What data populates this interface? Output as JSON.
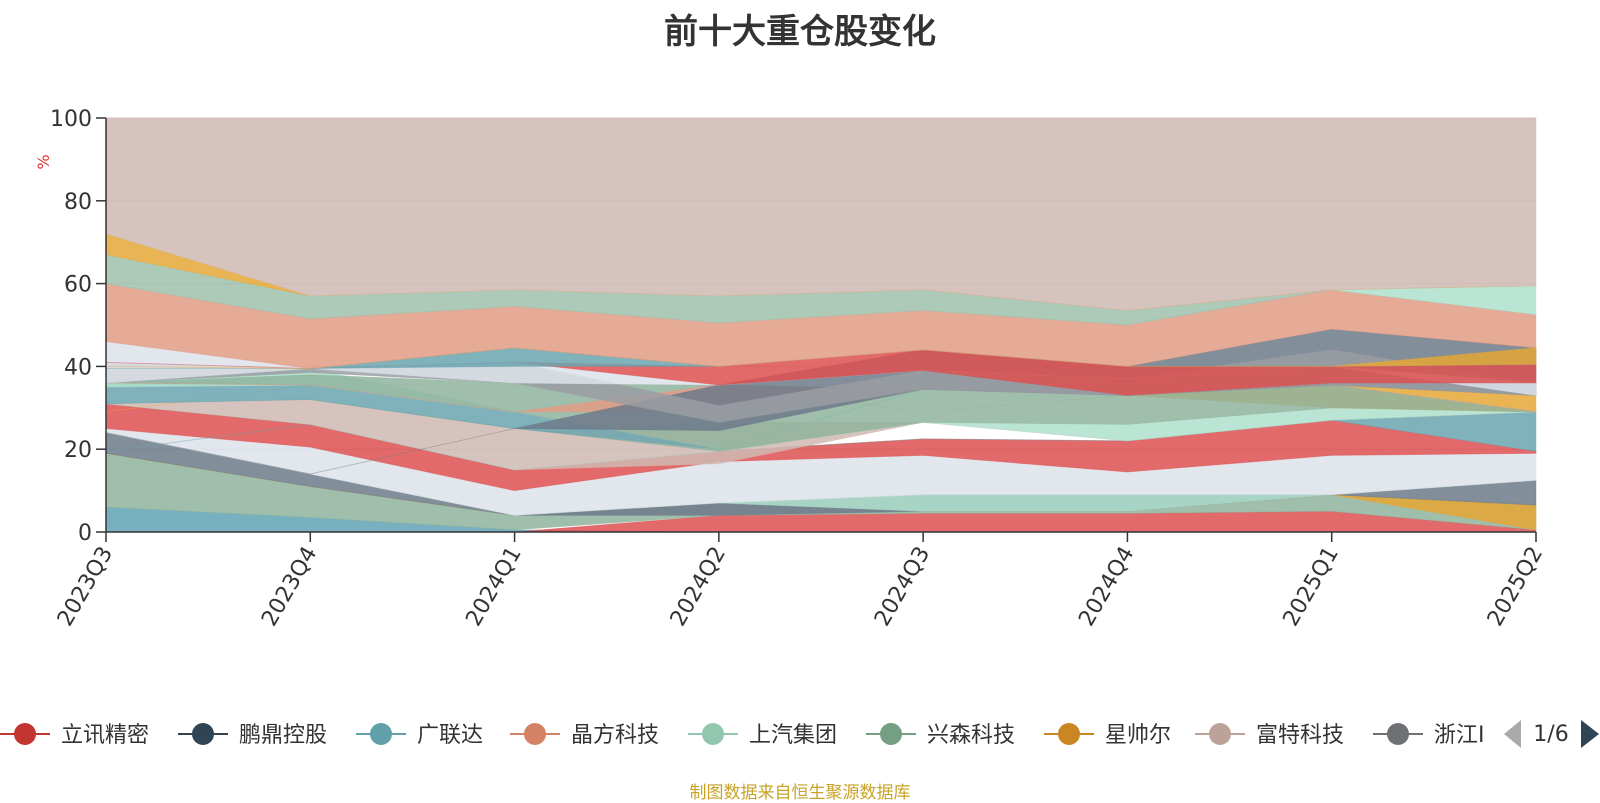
{
  "source_note": "制图数据来自恒生聚源数据库",
  "legend_page": "1/6",
  "chart_data": {
    "type": "area",
    "title": "前十大重仓股变化",
    "ylabel": "%",
    "ylim": [
      0,
      100
    ],
    "yticks": [
      0,
      20,
      40,
      60,
      80,
      100
    ],
    "grid": true,
    "legend_position": "bottom",
    "categories": [
      "2023Q3",
      "2023Q4",
      "2024Q1",
      "2024Q2",
      "2024Q3",
      "2024Q4",
      "2025Q1",
      "2025Q2"
    ],
    "bands": [
      {
        "color": "#5fa3b5",
        "lower": [
          0,
          0,
          0,
          0,
          0,
          0,
          0,
          0
        ],
        "upper": [
          6,
          3.5,
          0.5,
          0,
          0,
          0,
          0,
          0
        ]
      },
      {
        "color": "#dd5050",
        "lower": [
          0,
          0,
          0,
          0,
          0,
          0,
          0,
          0
        ],
        "upper": [
          0,
          0,
          0,
          4,
          4.5,
          4.5,
          5,
          0.5
        ]
      },
      {
        "color": "#8fb39d",
        "lower": [
          6,
          3.5,
          0.5,
          4,
          4.5,
          4.5,
          5,
          0.5
        ],
        "upper": [
          19,
          11,
          4,
          7,
          5,
          5,
          9,
          6.5
        ]
      },
      {
        "color": "#e5a735",
        "lower": [
          19,
          11,
          4,
          7,
          5,
          5,
          9,
          0.5
        ],
        "upper": [
          19,
          11,
          4,
          7,
          5,
          5,
          9,
          6.5
        ]
      },
      {
        "color": "#6d7a8a",
        "lower": [
          19,
          11,
          4,
          4,
          5,
          5,
          9,
          6.5
        ],
        "upper": [
          24,
          14,
          4,
          7,
          9,
          9,
          9,
          12.5
        ]
      },
      {
        "color": "#aee0cc",
        "lower": [
          24,
          14,
          4,
          7,
          5,
          5,
          9,
          12.5
        ],
        "upper": [
          24,
          14,
          4,
          7,
          9,
          9,
          9,
          12.5
        ]
      },
      {
        "color": "#dde2ea",
        "lower": [
          24,
          14,
          4,
          7,
          9,
          9,
          9,
          12.5
        ],
        "upper": [
          25,
          20.5,
          10,
          17,
          18.5,
          14.5,
          18.5,
          19
        ]
      },
      {
        "color": "#dd5050",
        "lower": [
          25,
          20.5,
          10,
          17,
          18.5,
          14.5,
          18.5,
          19
        ],
        "upper": [
          31,
          26,
          15,
          19.5,
          22.5,
          22,
          27,
          19.5
        ]
      },
      {
        "color": "#6aa5b0",
        "lower": [
          19.5,
          26,
          15,
          19.5,
          22.5,
          22,
          27,
          19.5
        ],
        "upper": [
          19.5,
          26,
          15,
          19.5,
          22.5,
          22,
          27,
          29
        ]
      },
      {
        "color": "#d0b9b2",
        "lower": [
          31,
          26,
          15,
          16.5,
          26.5,
          22,
          27,
          29
        ],
        "upper": [
          31,
          32,
          25,
          26.5,
          26.5,
          22,
          27,
          29
        ]
      },
      {
        "color": "#aee0cc",
        "lower": [
          31,
          26,
          15,
          19.5,
          26.5,
          22,
          27,
          29
        ],
        "upper": [
          31,
          26,
          15,
          19.5,
          26.5,
          26,
          30,
          29
        ]
      },
      {
        "color": "#e5a735",
        "lower": [
          29,
          35.5,
          35.5,
          35.5,
          29,
          33,
          30,
          29
        ],
        "upper": [
          29,
          35.5,
          35.5,
          35.5,
          29,
          33,
          35.5,
          33
        ]
      },
      {
        "color": "#8fb39d",
        "lower": [
          31,
          32,
          25,
          19.5,
          26.5,
          26,
          30,
          29
        ],
        "upper": [
          31,
          32,
          25,
          20,
          34.5,
          33,
          35.5,
          29
        ]
      },
      {
        "color": "#6aa5b0",
        "lower": [
          31,
          32,
          25,
          20,
          34.5,
          33,
          35.5,
          29
        ],
        "upper": [
          37,
          35.5,
          29,
          20,
          34.5,
          33,
          35.5,
          29
        ]
      },
      {
        "color": "#aee0cc",
        "lower": [
          35,
          35.5,
          29,
          20,
          34.5,
          33,
          35.5,
          29
        ],
        "upper": [
          36,
          39.5,
          29,
          20,
          34.5,
          33,
          35.5,
          29
        ]
      },
      {
        "color": "#8fb39d",
        "lower": [
          36,
          35.5,
          29,
          20,
          34.5,
          33,
          35.5,
          29
        ],
        "upper": [
          36,
          38,
          36,
          35.5,
          34.5,
          33,
          35.5,
          29
        ]
      },
      {
        "color": "#e29c85",
        "lower": [
          36,
          35.5,
          29,
          29,
          34.5,
          33,
          35.5,
          29
        ],
        "upper": [
          36,
          35.5,
          29,
          35.5,
          34.5,
          33,
          35.5,
          29
        ]
      },
      {
        "color": "#6d7a8a",
        "lower": [
          24,
          14,
          25,
          24.5,
          34.5,
          33,
          35.5,
          33
        ],
        "upper": [
          24,
          14,
          25,
          35.5,
          44,
          40,
          49,
          44.5
        ]
      },
      {
        "color": "#9a9ea3",
        "lower": [
          36,
          38.5,
          36,
          26.5,
          34.5,
          33,
          35.5,
          33
        ],
        "upper": [
          41,
          39.5,
          41,
          30.5,
          39,
          37,
          44,
          36
        ]
      },
      {
        "color": "#dde2ea",
        "lower": [
          36,
          39.5,
          36,
          35.5,
          39,
          37,
          40,
          33
        ],
        "upper": [
          46,
          39.5,
          41,
          35.5,
          39,
          37,
          40,
          36
        ]
      },
      {
        "color": "#dd5050",
        "lower": [
          41,
          39.5,
          41,
          35.5,
          39,
          33,
          36,
          36
        ],
        "upper": [
          41,
          39.5,
          41,
          40,
          44,
          40,
          40,
          40.5
        ]
      },
      {
        "color": "#6aa5b0",
        "lower": [
          39.5,
          39.5,
          40,
          40,
          44,
          40,
          40,
          40.5
        ],
        "upper": [
          39.5,
          39.5,
          44.5,
          40,
          44,
          40,
          40,
          40.5
        ]
      },
      {
        "color": "#e5a735",
        "lower": [
          40,
          39.5,
          44.5,
          40,
          44,
          40,
          40,
          40.5
        ],
        "upper": [
          40,
          39.5,
          44.5,
          40,
          44,
          40,
          40,
          44.5
        ]
      },
      {
        "color": "#e29c85",
        "lower": [
          46,
          39.5,
          44.5,
          40,
          44,
          40,
          49,
          44.5
        ],
        "upper": [
          60,
          51.5,
          54.5,
          50.5,
          53.5,
          50,
          58.5,
          52.5
        ]
      },
      {
        "color": "#9fbfab",
        "lower": [
          60,
          51.5,
          54.5,
          50.5,
          53.5,
          50,
          58.5,
          52.5
        ],
        "upper": [
          67,
          57,
          58.5,
          57,
          58.5,
          53.5,
          58.5,
          52.5
        ]
      },
      {
        "color": "#aee0cc",
        "lower": [
          67,
          57,
          58.5,
          57,
          58.5,
          53.5,
          58.5,
          52.5
        ],
        "upper": [
          67,
          57,
          58.5,
          57,
          58.5,
          53.5,
          58.5,
          59.5
        ]
      },
      {
        "color": "#e5a735",
        "lower": [
          67,
          57,
          58.5,
          57,
          58.5,
          53.5,
          58.5,
          59.5
        ],
        "upper": [
          72,
          57,
          58.5,
          57,
          58.5,
          53.5,
          58.5,
          59.5
        ]
      },
      {
        "color": "#d0b9b2",
        "lower": [
          72,
          57,
          58.5,
          57,
          58.5,
          53.5,
          58.5,
          59.5
        ],
        "upper": [
          100,
          100,
          100,
          100,
          100,
          100,
          100,
          100
        ]
      }
    ],
    "legend": [
      {
        "name": "立讯精密",
        "color": "#c23531"
      },
      {
        "name": "鹏鼎控股",
        "color": "#2f4554"
      },
      {
        "name": "广联达",
        "color": "#61a0a8"
      },
      {
        "name": "晶方科技",
        "color": "#d48265"
      },
      {
        "name": "上汽集团",
        "color": "#91c7ae"
      },
      {
        "name": "兴森科技",
        "color": "#749f83"
      },
      {
        "name": "星帅尔",
        "color": "#ca8622"
      },
      {
        "name": "富特科技",
        "color": "#bda29a"
      },
      {
        "name": "浙江I",
        "color": "#6e7074"
      }
    ]
  }
}
